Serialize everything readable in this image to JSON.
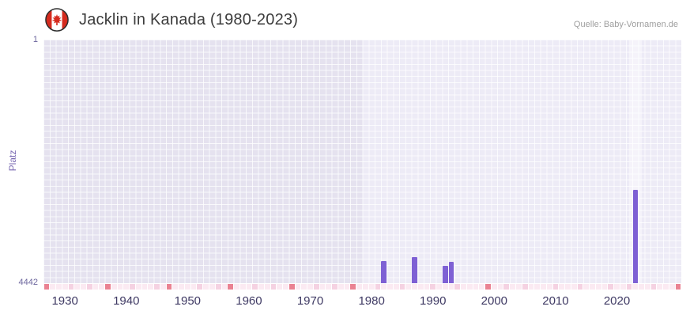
{
  "header": {
    "title": "Jacklin in Kanada (1980-2023)",
    "source": "Quelle: Baby-Vornamen.de",
    "flag_icon": "canada-flag"
  },
  "chart_data": {
    "type": "bar",
    "title": "Jacklin in Kanada (1980-2023)",
    "xlabel": "",
    "ylabel": "Platz",
    "y_axis": {
      "min": 1,
      "max": 4442,
      "inverted": true,
      "top_tick": "1",
      "bottom_tick": "4442"
    },
    "x_axis": {
      "start": 1927,
      "end": 2031,
      "ticks": [
        1930,
        1940,
        1950,
        1960,
        1970,
        1980,
        1990,
        2000,
        2010,
        2020
      ]
    },
    "series": [
      {
        "name": "Platz",
        "points": [
          {
            "year": 1982,
            "rank": 4040
          },
          {
            "year": 1987,
            "rank": 3960
          },
          {
            "year": 1992,
            "rank": 4120
          },
          {
            "year": 1993,
            "rank": 4050
          },
          {
            "year": 2023,
            "rank": 2740
          }
        ]
      }
    ],
    "regions": {
      "muted_until": 1979,
      "highlight_from": 2022.5,
      "highlight_to": 2024.5
    },
    "colors": {
      "bar": "#7e60d4",
      "plot_bg_left": "#e5e2ef",
      "plot_bg_right": "#edebf6",
      "highlight_band": "#f5f3fa",
      "grid": "#ffffff",
      "axis_text": "#6d679e",
      "year_text": "#3e3963"
    }
  },
  "heat_strip": {
    "start_year": 1927,
    "pattern": "caaabaabaacaaabaaabacaaaabaabacaaabaabaacaaabaabaacaaabaaabaaaabaaabaaaacaabaabaaaabaaabaaaabaabaaabaaac",
    "colors": {
      "a": "#fbeaf2",
      "b": "#f5d2e2",
      "c": "#ea8292"
    }
  }
}
